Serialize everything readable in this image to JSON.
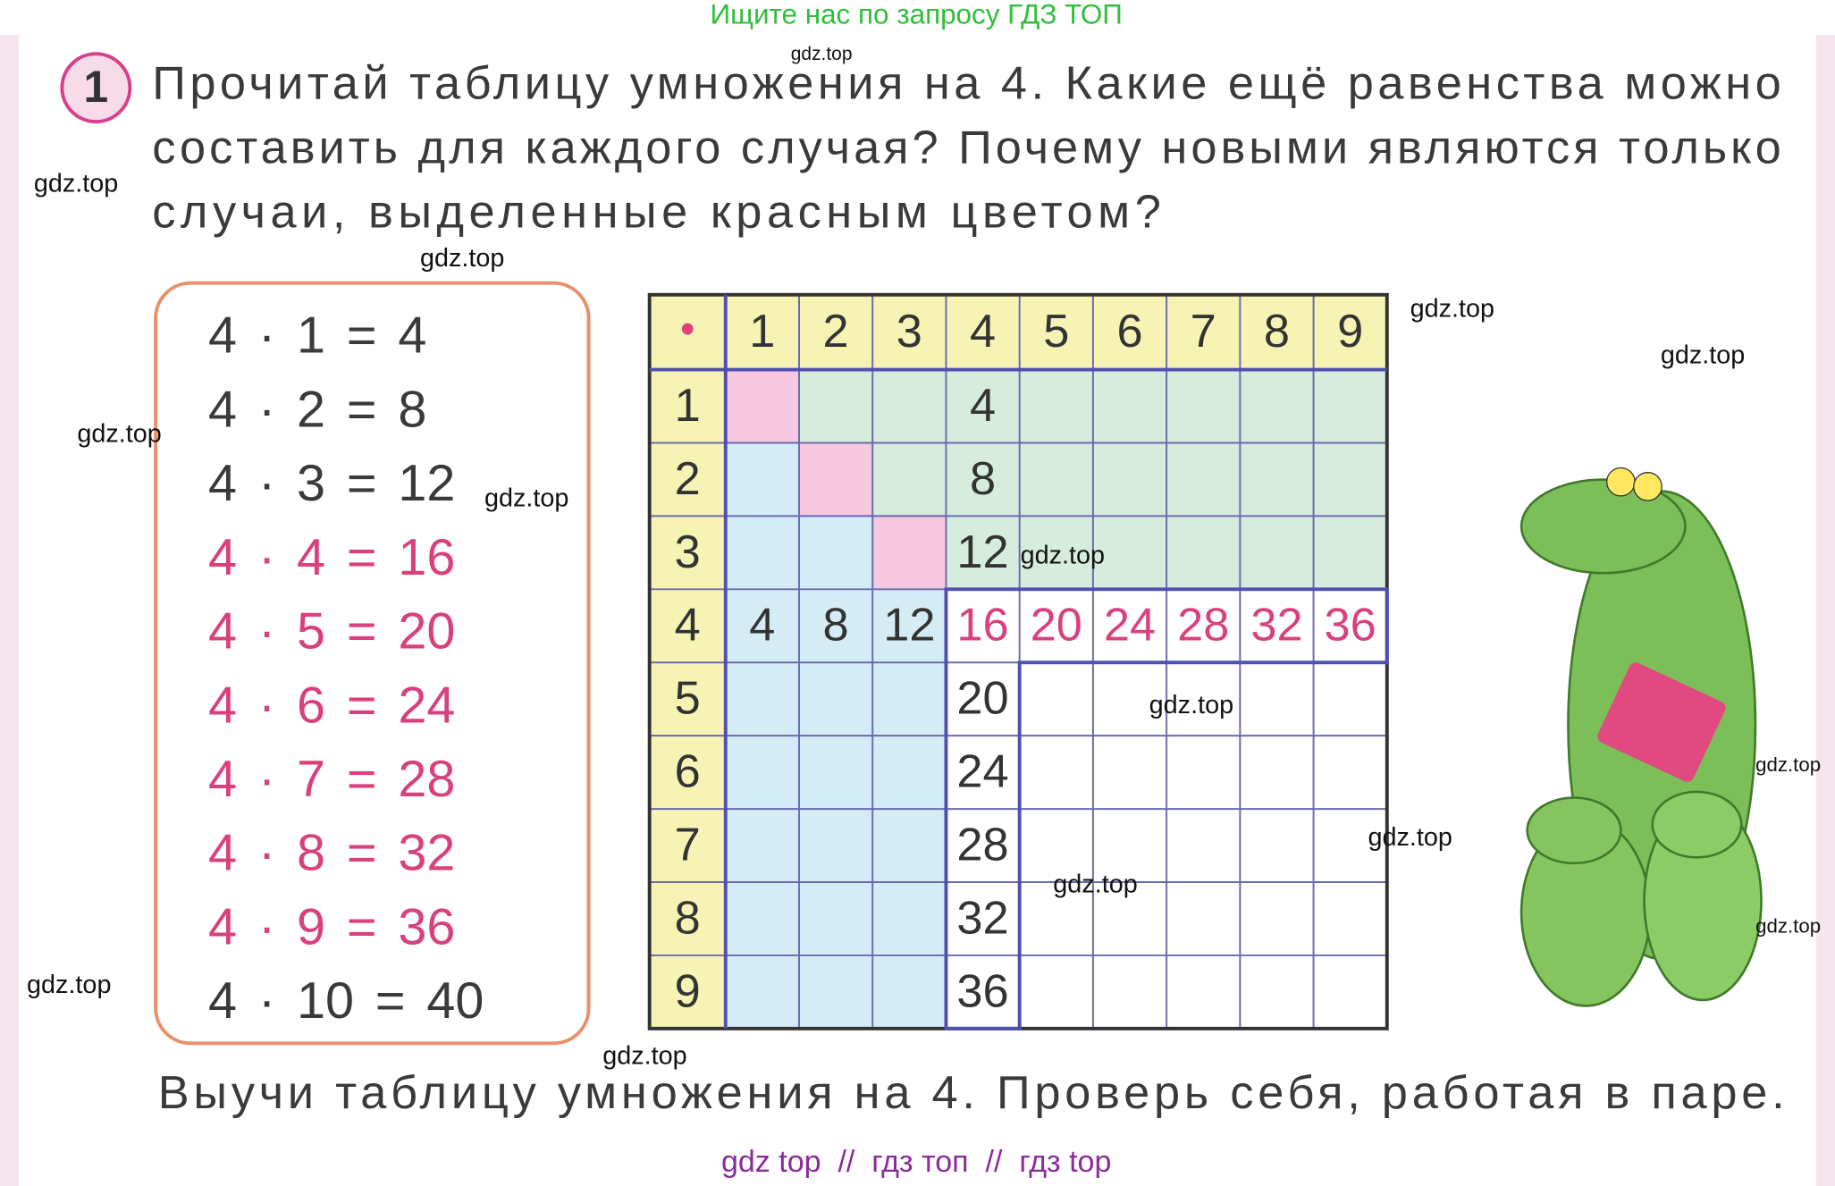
{
  "header": {
    "banner": "Ищите нас по запросу ГДЗ ТОП"
  },
  "exercise": {
    "number": "1",
    "task_lines": [
      "Прочитай таблицу умножения на 4. Какие ещё равенства можно",
      "составить для каждого случая? Почему новыми являются только",
      "случаи, выделенные красным цветом?"
    ]
  },
  "equations": [
    {
      "text": "4 · 1 = 4",
      "highlighted": false
    },
    {
      "text": "4 · 2 = 8",
      "highlighted": false
    },
    {
      "text": "4 · 3 = 12",
      "highlighted": false
    },
    {
      "text": "4 · 4 = 16",
      "highlighted": true
    },
    {
      "text": "4 · 5 = 20",
      "highlighted": true
    },
    {
      "text": "4 · 6 = 24",
      "highlighted": true
    },
    {
      "text": "4 · 7 = 28",
      "highlighted": true
    },
    {
      "text": "4 · 8 = 32",
      "highlighted": true
    },
    {
      "text": "4 · 9 = 36",
      "highlighted": true
    },
    {
      "text": "4 · 10 = 40",
      "highlighted": false
    }
  ],
  "table": {
    "corner": "•",
    "column_headers": [
      1,
      2,
      3,
      4,
      5,
      6,
      7,
      8,
      9
    ],
    "row_headers": [
      1,
      2,
      3,
      4,
      5,
      6,
      7,
      8,
      9
    ],
    "cells": [
      [
        null,
        null,
        null,
        4,
        null,
        null,
        null,
        null,
        null
      ],
      [
        null,
        null,
        null,
        8,
        null,
        null,
        null,
        null,
        null
      ],
      [
        null,
        null,
        null,
        12,
        null,
        null,
        null,
        null,
        null
      ],
      [
        4,
        8,
        12,
        16,
        20,
        24,
        28,
        32,
        36
      ],
      [
        null,
        null,
        null,
        20,
        null,
        null,
        null,
        null,
        null
      ],
      [
        null,
        null,
        null,
        24,
        null,
        null,
        null,
        null,
        null
      ],
      [
        null,
        null,
        null,
        28,
        null,
        null,
        null,
        null,
        null
      ],
      [
        null,
        null,
        null,
        32,
        null,
        null,
        null,
        null,
        null
      ],
      [
        null,
        null,
        null,
        36,
        null,
        null,
        null,
        null,
        null
      ]
    ]
  },
  "watermarks": [
    "gdz.top",
    "gdz.top",
    "gdz.top",
    "gdz.top",
    "gdz.top",
    "gdz.top",
    "gdz.top",
    "gdz.top",
    "gdz.top",
    "gdz.top",
    "gdz.top",
    "gdz.top",
    "gdz.top",
    "gdz.top",
    "gdz.top"
  ],
  "instruction": "Выучи таблицу умножения на 4. Проверь себя, работая в паре.",
  "footer": "gdz top  //  гдз топ  //  гдз top"
}
